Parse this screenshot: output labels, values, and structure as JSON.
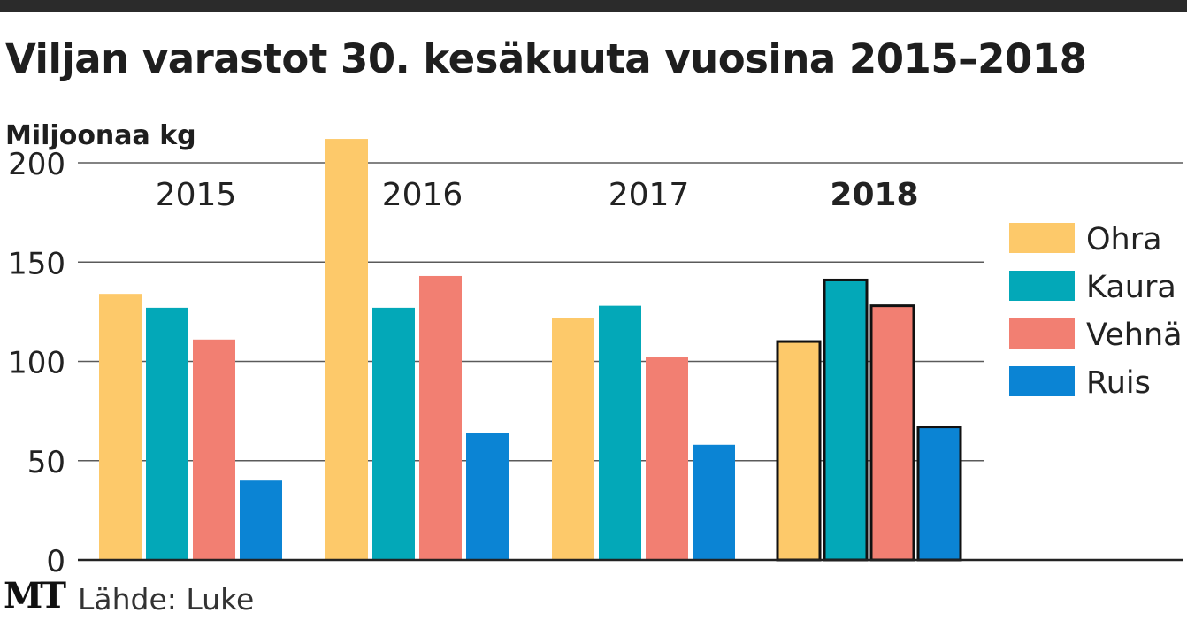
{
  "colors": {
    "Ohra": "#fdc96a",
    "Kaura": "#03a8b8",
    "Vehnä": "#f27f72",
    "Ruis": "#0b84d4",
    "grid": "#5a5a5a",
    "highlight_outline": "#111111"
  },
  "header": {
    "title": "Viljan varastot 30. kesäkuuta vuosina 2015–2018",
    "unit": "Miljoonaa kg"
  },
  "footer": {
    "logo": "MT",
    "source": "Lähde: Luke"
  },
  "chart_data": {
    "type": "bar",
    "title": "Viljan varastot 30. kesäkuuta vuosina 2015–2018",
    "ylabel": "Miljoonaa kg",
    "ylim": [
      0,
      200
    ],
    "yticks": [
      "0",
      "50",
      "100",
      "150",
      "200"
    ],
    "grid": true,
    "legend_position": "right",
    "categories": [
      "2015",
      "2016",
      "2017",
      "2018"
    ],
    "highlight_category": "2018",
    "series": [
      {
        "name": "Ohra",
        "values": [
          134,
          212,
          122,
          110
        ]
      },
      {
        "name": "Kaura",
        "values": [
          127,
          127,
          128,
          141
        ]
      },
      {
        "name": "Vehnä",
        "values": [
          111,
          143,
          102,
          128
        ]
      },
      {
        "name": "Ruis",
        "values": [
          40,
          64,
          58,
          67
        ]
      }
    ]
  }
}
